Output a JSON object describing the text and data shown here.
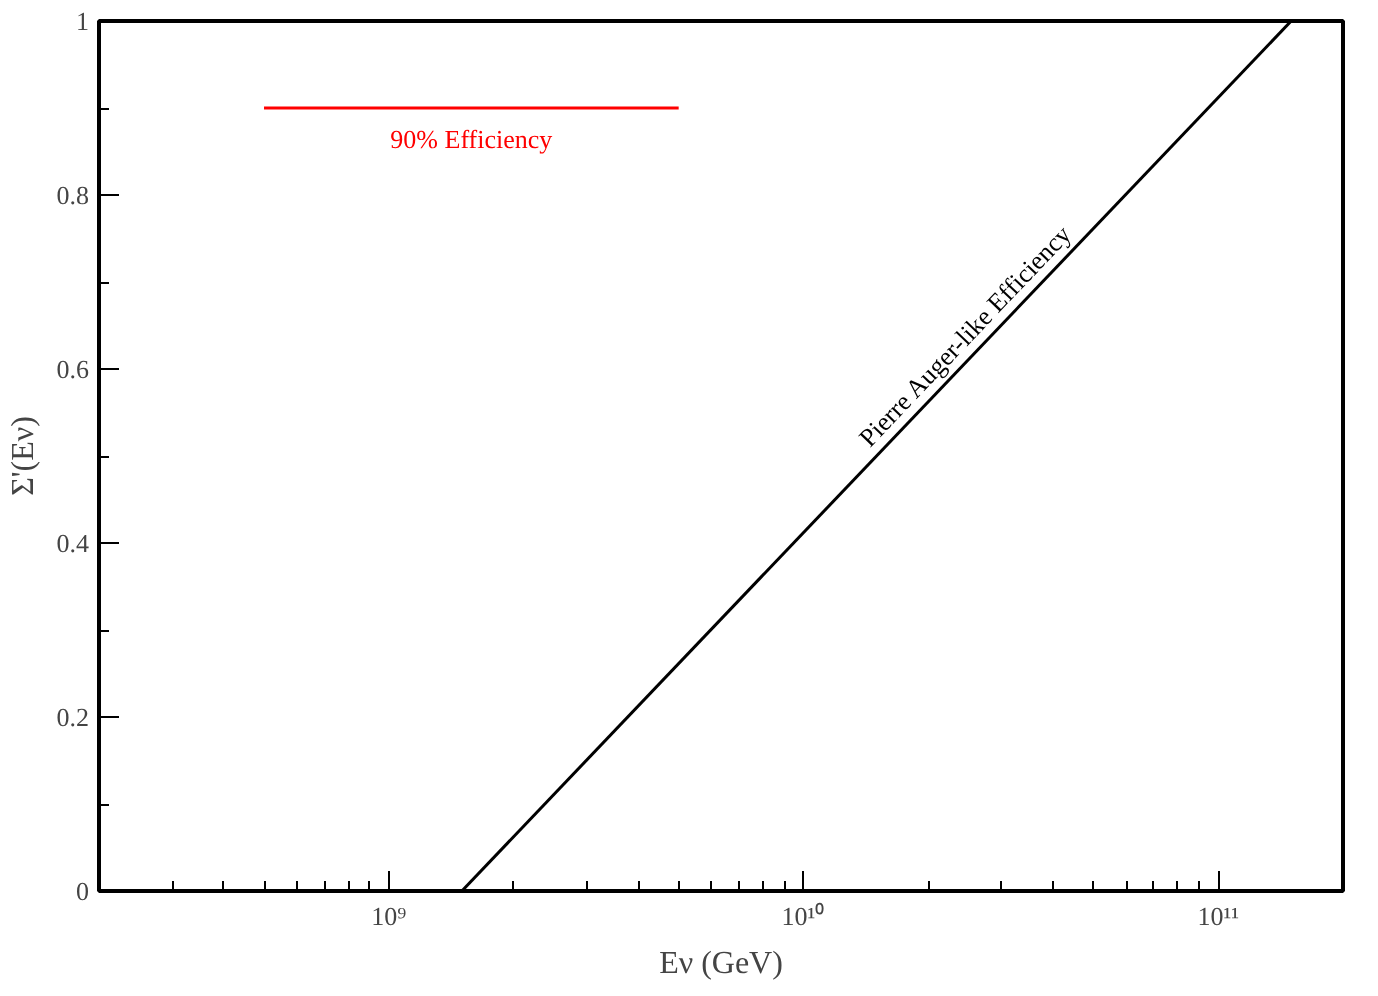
{
  "chart_data": {
    "type": "line",
    "xlabel": "Eν (GeV)",
    "ylabel": "Σ'(Eν)",
    "log": "x",
    "xlim": [
      200000000.0,
      200000000000.0
    ],
    "xticks": [
      {
        "value": 1000000000.0,
        "label": "10⁹"
      },
      {
        "value": 10000000000.0,
        "label": "10¹⁰"
      },
      {
        "value": 100000000000.0,
        "label": "10¹¹"
      }
    ],
    "ylim": [
      0,
      1
    ],
    "yticks": [
      0,
      0.2,
      0.4,
      0.6,
      0.8,
      1
    ],
    "grid": false,
    "marker": "none",
    "line_style": "solid",
    "series": [
      {
        "name": "Pierre Auger-like Efficiency",
        "color": "#000000",
        "x": [
          1500000000.0,
          150000000000.0
        ],
        "values": [
          0,
          1
        ]
      },
      {
        "name": "90% Efficiency",
        "color": "#ff0000",
        "x": [
          500000000.0,
          5000000000.0
        ],
        "values": [
          0.9,
          0.9
        ]
      }
    ]
  }
}
